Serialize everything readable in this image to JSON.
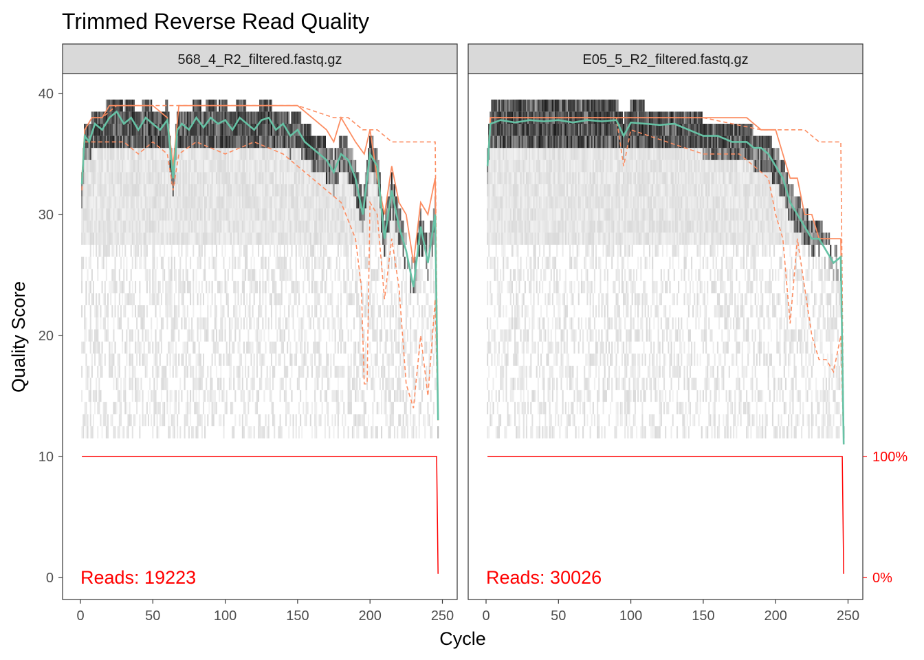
{
  "title": "Trimmed Reverse Read Quality",
  "chart_data": {
    "type": "line",
    "title": "Trimmed Reverse Read Quality",
    "xlabel": "Cycle",
    "ylabel": "Quality Score",
    "xlim": [
      -5,
      252
    ],
    "ylim": [
      -2,
      42
    ],
    "x_ticks": [
      0,
      50,
      100,
      150,
      200,
      250
    ],
    "y_ticks": [
      0,
      10,
      20,
      30,
      40
    ],
    "secondary_axis": {
      "labels": [
        "0%",
        "100%"
      ],
      "color": "#ff0000"
    },
    "colors": {
      "mean": "#66c2a5",
      "quantile": "#fc8d62",
      "reads": "#ff0000",
      "strip_bg": "#d9d9d9"
    },
    "panels": [
      {
        "strip": "568_4_R2_filtered.fastq.gz",
        "reads_label": "Reads:  19223",
        "max_cycle": 247,
        "mean": [
          [
            1,
            32.5
          ],
          [
            3,
            36.5
          ],
          [
            6,
            36
          ],
          [
            10,
            37.5
          ],
          [
            15,
            37
          ],
          [
            20,
            38
          ],
          [
            25,
            38.5
          ],
          [
            30,
            37.5
          ],
          [
            35,
            38
          ],
          [
            40,
            37
          ],
          [
            45,
            38
          ],
          [
            50,
            37.5
          ],
          [
            55,
            37
          ],
          [
            60,
            37.8
          ],
          [
            64,
            33
          ],
          [
            67,
            37
          ],
          [
            70,
            37.5
          ],
          [
            75,
            37
          ],
          [
            80,
            38
          ],
          [
            85,
            37.2
          ],
          [
            90,
            38
          ],
          [
            95,
            37.5
          ],
          [
            100,
            37.8
          ],
          [
            105,
            37
          ],
          [
            110,
            38
          ],
          [
            115,
            37.5
          ],
          [
            120,
            37
          ],
          [
            125,
            37.8
          ],
          [
            130,
            38
          ],
          [
            135,
            37
          ],
          [
            140,
            37.5
          ],
          [
            145,
            36.5
          ],
          [
            150,
            37
          ],
          [
            155,
            36
          ],
          [
            160,
            35.5
          ],
          [
            165,
            35
          ],
          [
            170,
            34.5
          ],
          [
            175,
            33.5
          ],
          [
            180,
            35
          ],
          [
            185,
            34.5
          ],
          [
            190,
            33
          ],
          [
            195,
            30
          ],
          [
            200,
            35
          ],
          [
            205,
            34
          ],
          [
            210,
            28
          ],
          [
            215,
            32
          ],
          [
            220,
            29
          ],
          [
            225,
            27
          ],
          [
            230,
            24
          ],
          [
            235,
            29
          ],
          [
            240,
            26
          ],
          [
            245,
            30
          ],
          [
            247,
            13
          ]
        ],
        "median": [
          [
            1,
            33
          ],
          [
            3,
            37
          ],
          [
            8,
            38
          ],
          [
            15,
            38
          ],
          [
            20,
            39
          ],
          [
            30,
            39
          ],
          [
            40,
            39
          ],
          [
            50,
            39
          ],
          [
            60,
            38
          ],
          [
            64,
            34
          ],
          [
            68,
            39
          ],
          [
            80,
            39
          ],
          [
            100,
            39
          ],
          [
            120,
            39
          ],
          [
            150,
            39
          ],
          [
            160,
            38
          ],
          [
            170,
            37
          ],
          [
            175,
            36
          ],
          [
            180,
            38
          ],
          [
            190,
            36
          ],
          [
            196,
            35
          ],
          [
            200,
            37
          ],
          [
            205,
            33
          ],
          [
            210,
            30
          ],
          [
            215,
            34
          ],
          [
            220,
            31
          ],
          [
            225,
            30
          ],
          [
            230,
            26
          ],
          [
            235,
            31
          ],
          [
            240,
            30
          ],
          [
            245,
            33
          ],
          [
            247,
            13
          ]
        ],
        "q25": [
          [
            1,
            32
          ],
          [
            3,
            36
          ],
          [
            8,
            36
          ],
          [
            15,
            36
          ],
          [
            20,
            36
          ],
          [
            30,
            36
          ],
          [
            40,
            35
          ],
          [
            50,
            36
          ],
          [
            60,
            35
          ],
          [
            64,
            32
          ],
          [
            68,
            35
          ],
          [
            80,
            36
          ],
          [
            100,
            35
          ],
          [
            120,
            36
          ],
          [
            140,
            35
          ],
          [
            150,
            34
          ],
          [
            160,
            33
          ],
          [
            170,
            32
          ],
          [
            180,
            31
          ],
          [
            190,
            28
          ],
          [
            194,
            24
          ],
          [
            196,
            16
          ],
          [
            198,
            16
          ],
          [
            200,
            31
          ],
          [
            205,
            30
          ],
          [
            210,
            23
          ],
          [
            215,
            28
          ],
          [
            220,
            24
          ],
          [
            225,
            16
          ],
          [
            230,
            14
          ],
          [
            235,
            20
          ],
          [
            240,
            15
          ],
          [
            245,
            23
          ],
          [
            247,
            13
          ]
        ],
        "q75": [
          [
            1,
            33
          ],
          [
            3,
            37
          ],
          [
            8,
            38
          ],
          [
            15,
            38
          ],
          [
            25,
            39
          ],
          [
            50,
            39
          ],
          [
            100,
            39
          ],
          [
            150,
            39
          ],
          [
            175,
            38
          ],
          [
            185,
            38
          ],
          [
            195,
            37
          ],
          [
            205,
            37
          ],
          [
            215,
            36
          ],
          [
            225,
            36
          ],
          [
            235,
            36
          ],
          [
            245,
            36
          ],
          [
            247,
            13
          ]
        ]
      },
      {
        "strip": "E05_5_R2_filtered.fastq.gz",
        "reads_label": "Reads:  30026",
        "max_cycle": 247,
        "mean": [
          [
            1,
            34
          ],
          [
            3,
            37.5
          ],
          [
            10,
            37.8
          ],
          [
            20,
            37.6
          ],
          [
            30,
            37.8
          ],
          [
            40,
            37.7
          ],
          [
            50,
            37.8
          ],
          [
            60,
            37.6
          ],
          [
            70,
            37.8
          ],
          [
            80,
            37.7
          ],
          [
            90,
            37.8
          ],
          [
            95,
            36.5
          ],
          [
            100,
            37.6
          ],
          [
            110,
            37.5
          ],
          [
            120,
            37.4
          ],
          [
            130,
            37.5
          ],
          [
            140,
            37
          ],
          [
            150,
            36.5
          ],
          [
            160,
            36.5
          ],
          [
            170,
            36
          ],
          [
            180,
            36
          ],
          [
            185,
            35.5
          ],
          [
            190,
            35.5
          ],
          [
            195,
            35
          ],
          [
            200,
            34
          ],
          [
            205,
            33
          ],
          [
            210,
            31
          ],
          [
            215,
            30
          ],
          [
            220,
            29
          ],
          [
            225,
            28
          ],
          [
            230,
            28
          ],
          [
            235,
            27
          ],
          [
            240,
            26
          ],
          [
            245,
            26.5
          ],
          [
            247,
            11
          ]
        ],
        "median": [
          [
            1,
            34
          ],
          [
            3,
            38
          ],
          [
            50,
            38
          ],
          [
            100,
            38
          ],
          [
            150,
            38
          ],
          [
            180,
            38
          ],
          [
            190,
            37
          ],
          [
            200,
            37
          ],
          [
            205,
            35
          ],
          [
            210,
            33
          ],
          [
            215,
            33
          ],
          [
            220,
            30
          ],
          [
            225,
            30
          ],
          [
            230,
            28
          ],
          [
            235,
            28
          ],
          [
            240,
            28
          ],
          [
            245,
            28
          ],
          [
            247,
            11
          ]
        ],
        "q25": [
          [
            1,
            34
          ],
          [
            3,
            38
          ],
          [
            50,
            38
          ],
          [
            90,
            38
          ],
          [
            95,
            34
          ],
          [
            100,
            37
          ],
          [
            150,
            35
          ],
          [
            175,
            35
          ],
          [
            185,
            34
          ],
          [
            195,
            33
          ],
          [
            200,
            30
          ],
          [
            205,
            28
          ],
          [
            210,
            21
          ],
          [
            215,
            28
          ],
          [
            220,
            24
          ],
          [
            225,
            20
          ],
          [
            230,
            18
          ],
          [
            235,
            18
          ],
          [
            240,
            17
          ],
          [
            245,
            20
          ],
          [
            247,
            11
          ]
        ],
        "q75": [
          [
            1,
            34
          ],
          [
            3,
            38
          ],
          [
            50,
            38
          ],
          [
            100,
            38
          ],
          [
            150,
            38
          ],
          [
            190,
            37
          ],
          [
            200,
            37
          ],
          [
            210,
            37
          ],
          [
            220,
            37
          ],
          [
            230,
            36
          ],
          [
            240,
            36
          ],
          [
            245,
            36
          ],
          [
            247,
            11
          ]
        ]
      }
    ]
  }
}
